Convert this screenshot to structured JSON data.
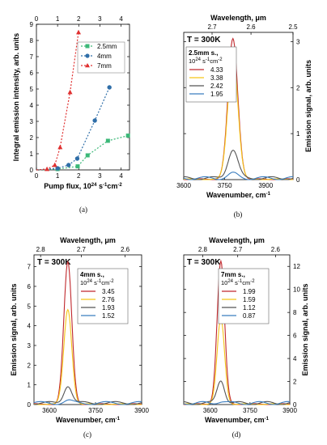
{
  "chart_data": [
    {
      "panel": "a",
      "type": "line",
      "caption": "(a)",
      "xlabel": "Pump flux, 10",
      "xlabel_sup1": "24",
      "xlabel_mid": " s",
      "xlabel_sup2": "-1",
      "xlabel_end": "cm",
      "xlabel_sup3": "-2",
      "ylabel": "Integral emission intensity, arb. units",
      "xlim": [
        0,
        4.4
      ],
      "ylim": [
        0,
        9
      ],
      "xticks": [
        0,
        1,
        2,
        3,
        4
      ],
      "yticks": [
        0,
        1,
        2,
        3,
        4,
        5,
        6,
        7,
        8,
        9
      ],
      "legend_position": "upper-middle",
      "series": [
        {
          "name": "2.5mm",
          "color": "#3cb878",
          "marker": "square",
          "x": [
            0.0,
            1.0,
            1.95,
            2.42,
            3.38,
            4.33
          ],
          "y": [
            0.0,
            0.05,
            0.22,
            0.9,
            1.8,
            2.12
          ]
        },
        {
          "name": "4mm",
          "color": "#2f6ea8",
          "marker": "circle",
          "x": [
            0.0,
            1.0,
            1.52,
            1.93,
            2.76,
            3.45
          ],
          "y": [
            0.0,
            0.1,
            0.3,
            0.7,
            3.05,
            5.1
          ]
        },
        {
          "name": "7mm",
          "color": "#e03030",
          "marker": "triangle",
          "x": [
            0.0,
            0.5,
            0.87,
            1.12,
            1.59,
            1.99
          ],
          "y": [
            0.0,
            0.05,
            0.3,
            1.4,
            4.8,
            8.5
          ]
        }
      ]
    },
    {
      "panel": "b",
      "type": "line",
      "caption": "(b)",
      "title": "T = 300K",
      "xlabel": "Wavenumber, cm",
      "xlabel_sup": "-1",
      "xlabel_top": "Wavelength, μm",
      "ylabel": "Emission signal, arb. units",
      "xlim": [
        3600,
        4000
      ],
      "ylim": [
        0,
        3.2
      ],
      "xticks": [
        3600,
        3750,
        3900
      ],
      "yticks": [
        0,
        1,
        2,
        3
      ],
      "top_ticks": [
        2.7,
        2.6,
        2.5
      ],
      "legend_title": "2.5mm s.,",
      "legend_units": "10",
      "legend_units_sup1": "24",
      "legend_units_mid": " s",
      "legend_units_sup2": "-1",
      "legend_units_end": "cm",
      "legend_units_sup3": "-2",
      "peak": 3780,
      "sigma": 18,
      "series": [
        {
          "name": "4.33",
          "color": "#c0282d",
          "amp": 3.05
        },
        {
          "name": "3.38",
          "color": "#f5c518",
          "amp": 2.75
        },
        {
          "name": "2.42",
          "color": "#555555",
          "amp": 0.62
        },
        {
          "name": "1.95",
          "color": "#3a7dbf",
          "amp": 0.1
        }
      ]
    },
    {
      "panel": "c",
      "type": "line",
      "caption": "(c)",
      "title": "T = 300K",
      "xlabel": "Wavenumber, cm",
      "xlabel_sup": "-1",
      "xlabel_top": "Wavelength, μm",
      "ylabel": "Emission signal, arb. units",
      "xlim": [
        3550,
        3900
      ],
      "ylim": [
        0,
        7.6
      ],
      "xticks": [
        3600,
        3750,
        3900
      ],
      "yticks": [
        0,
        1,
        2,
        3,
        4,
        5,
        6,
        7
      ],
      "top_ticks": [
        2.8,
        2.7,
        2.6
      ],
      "legend_title": "4mm s.,",
      "legend_units": "10",
      "legend_units_sup1": "24",
      "legend_units_mid": " s",
      "legend_units_sup2": "-1",
      "legend_units_end": "cm",
      "legend_units_sup3": "-2",
      "peak": 3660,
      "sigma": 13,
      "series": [
        {
          "name": "3.45",
          "color": "#c0282d",
          "amp": 7.2
        },
        {
          "name": "2.76",
          "color": "#f5c518",
          "amp": 4.8
        },
        {
          "name": "1.93",
          "color": "#555555",
          "amp": 0.9
        },
        {
          "name": "1.52",
          "color": "#3a7dbf",
          "amp": 0.12
        }
      ]
    },
    {
      "panel": "d",
      "type": "line",
      "caption": "(d)",
      "title": "T = 300K",
      "xlabel": "Wavenumber, cm",
      "xlabel_sup": "-1",
      "xlabel_top": "Wavelength, μm",
      "ylabel": "Emission signal, arb. units",
      "xlim": [
        3500,
        3900
      ],
      "ylim": [
        0,
        13
      ],
      "xticks": [
        3600,
        3750,
        3900
      ],
      "yticks": [
        0,
        2,
        4,
        6,
        8,
        10,
        12
      ],
      "top_ticks": [
        2.8,
        2.7,
        2.6
      ],
      "legend_title": "7mm s.,",
      "legend_units": "10",
      "legend_units_sup1": "24",
      "legend_units_mid": " s",
      "legend_units_sup2": "-1",
      "legend_units_end": "cm",
      "legend_units_sup3": "-2",
      "peak": 3640,
      "sigma": 14,
      "series": [
        {
          "name": "1.99",
          "color": "#c0282d",
          "amp": 12.4
        },
        {
          "name": "1.59",
          "color": "#f5c518",
          "amp": 7.4
        },
        {
          "name": "1.12",
          "color": "#555555",
          "amp": 2.0
        },
        {
          "name": "0.87",
          "color": "#3a7dbf",
          "amp": 0.15
        }
      ]
    }
  ]
}
